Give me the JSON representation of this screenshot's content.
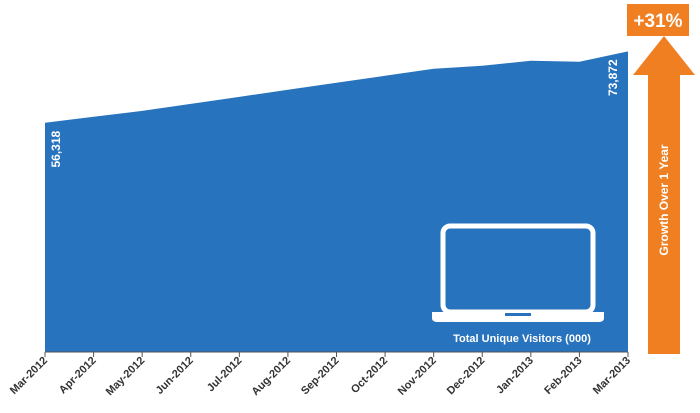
{
  "chart_data": {
    "type": "area",
    "categories": [
      "Mar-2012",
      "Apr-2012",
      "May-2012",
      "Jun-2012",
      "Jul-2012",
      "Aug-2012",
      "Sep-2012",
      "Oct-2012",
      "Nov-2012",
      "Dec-2012",
      "Jan-2013",
      "Feb-2013",
      "Mar-2013"
    ],
    "series": [
      {
        "name": "Total Unique Visitors (000)",
        "color": "#2873bd",
        "values": [
          56318,
          57790,
          59260,
          60980,
          62700,
          64430,
          66150,
          67870,
          69590,
          70330,
          71560,
          71310,
          73872
        ],
        "value_labels": [
          "56,318",
          null,
          null,
          null,
          null,
          null,
          null,
          null,
          null,
          null,
          null,
          null,
          "73,872"
        ]
      }
    ],
    "ylim": [
      0,
      86000
    ],
    "annotations": {
      "growth": "+31%",
      "growth_caption": "Growth Over 1 Year",
      "color": "#f07f22"
    }
  }
}
